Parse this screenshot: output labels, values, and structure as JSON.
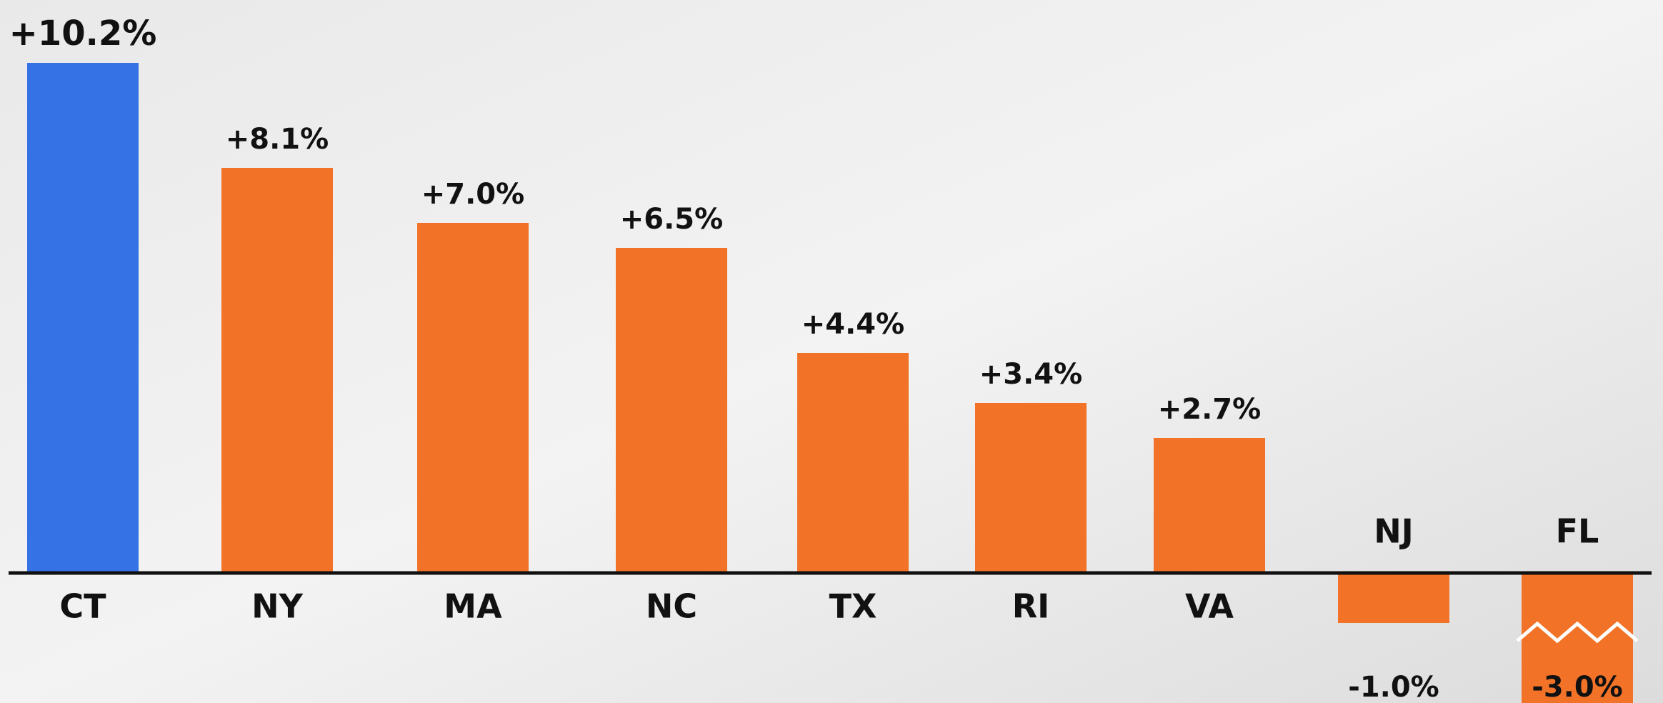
{
  "chart_data": {
    "type": "bar",
    "categories": [
      "CT",
      "NY",
      "MA",
      "NC",
      "TX",
      "RI",
      "VA",
      "NJ",
      "FL"
    ],
    "values": [
      10.2,
      8.1,
      7.0,
      6.5,
      4.4,
      3.4,
      2.7,
      -1.0,
      -3.0
    ],
    "value_labels": [
      "+10.2%",
      "+8.1%",
      "+7.0%",
      "+6.5%",
      "+4.4%",
      "+3.4%",
      "+2.7%",
      "-1.0%",
      "-3.0%"
    ],
    "colors": [
      "#3572e6",
      "#f27328",
      "#f27328",
      "#f27328",
      "#f27328",
      "#f27328",
      "#f27328",
      "#f27328",
      "#f27328"
    ],
    "ylim": [
      -2.6,
      10.6
    ]
  }
}
